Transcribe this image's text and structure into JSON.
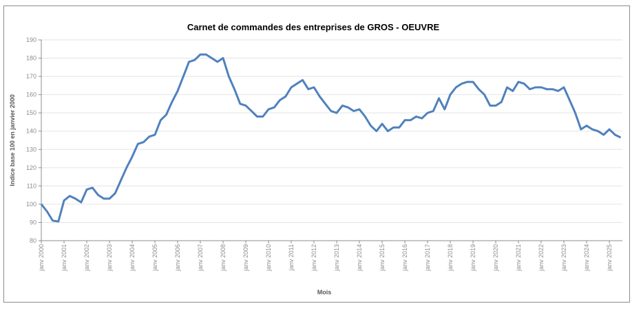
{
  "chart_data": {
    "type": "line",
    "title": "Carnet de commandes des entreprises de GROS - OEUVRE",
    "xlabel": "Mois",
    "ylabel": "Indice base 100 en janvier 2000",
    "ylim": [
      80,
      190
    ],
    "yticks": [
      80,
      90,
      100,
      110,
      120,
      130,
      140,
      150,
      160,
      170,
      180,
      190
    ],
    "xtick_labels": [
      "janv 2000",
      "janv 2001",
      "janv 2002",
      "janv 2003",
      "janv 2004",
      "janv 2005",
      "janv 2006",
      "janv 2007",
      "janv 2008",
      "janv 2009",
      "janv 2010",
      "janv 2011",
      "janv 2012",
      "janv 2013",
      "janv 2014",
      "janv 2015",
      "janv 2016",
      "janv 2017",
      "janv 2018",
      "janv 2019",
      "janv 2020",
      "janv 2021",
      "janv 2022",
      "janv 2023",
      "janv 2024",
      "janv 2025"
    ],
    "grid": true,
    "color": "#4f81bd",
    "series": [
      {
        "name": "Carnet de commandes",
        "x_start": "2000-01",
        "step_months": 3,
        "values": [
          100,
          96,
          91,
          90.5,
          102,
          104.5,
          103,
          101,
          108,
          109,
          105,
          103,
          103,
          106,
          113,
          120,
          126,
          133,
          134,
          137,
          138,
          146,
          149,
          156,
          162,
          170,
          178,
          179,
          182,
          182,
          180,
          178,
          180,
          170,
          163,
          155,
          154,
          151,
          148,
          148,
          152,
          153,
          157,
          159,
          164,
          166,
          168,
          163,
          164,
          159,
          155,
          151,
          150,
          154,
          153,
          151,
          152,
          148,
          143,
          140,
          144,
          140,
          142,
          142,
          146,
          146,
          148,
          147,
          150,
          151,
          158,
          152,
          160,
          164,
          166,
          167,
          167,
          163,
          160,
          154,
          154,
          156,
          164,
          162,
          167,
          166,
          163,
          164,
          164,
          163,
          163,
          162,
          164,
          157,
          150,
          141,
          143,
          141,
          140,
          138,
          141,
          138,
          136.5
        ]
      }
    ]
  }
}
